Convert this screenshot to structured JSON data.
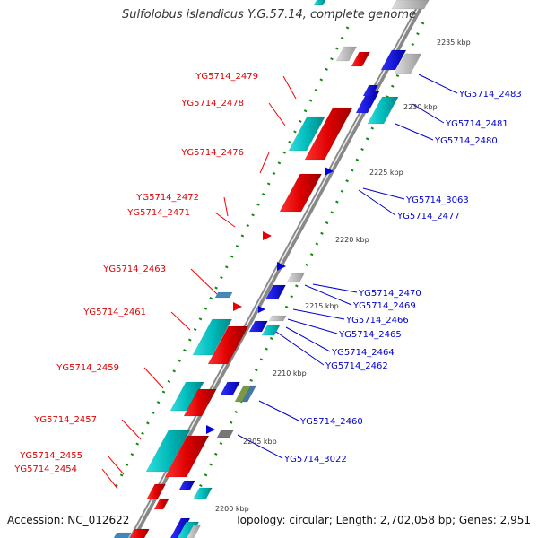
{
  "title": "Sulfolobus islandicus Y.G.57.14, complete genome",
  "accession": "Accession: NC_012622",
  "topology": "Topology: circular; Length: 2,702,058 bp; Genes: 2,951",
  "colors": {
    "left_label": "#e00000",
    "right_label": "#0000cc",
    "forward_gene": "#ff0000",
    "reverse_gene": "#0000ff",
    "rna_gene": "#00cccc",
    "other_gene": "#bbbbbb",
    "backbone": "#888888",
    "tick": "#118811"
  },
  "kbp_labels": [
    "2235 kbp",
    "2230 kbp",
    "2225 kbp",
    "2220 kbp",
    "2215 kbp",
    "2210 kbp",
    "2205 kbp",
    "2200 kbp"
  ],
  "left_genes": [
    "YG5714_2479",
    "YG5714_2478",
    "YG5714_2476",
    "YG5714_2472",
    "YG5714_2471",
    "YG5714_2463",
    "YG5714_2461",
    "YG5714_2459",
    "YG5714_2457",
    "YG5714_2455",
    "YG5714_2454"
  ],
  "right_genes": [
    "YG5714_2483",
    "YG5714_2481",
    "YG5714_2480",
    "YG5714_3063",
    "YG5714_2477",
    "YG5714_2470",
    "YG5714_2469",
    "YG5714_2466",
    "YG5714_2465",
    "YG5714_2464",
    "YG5714_2462",
    "YG5714_2460",
    "YG5714_3022"
  ]
}
